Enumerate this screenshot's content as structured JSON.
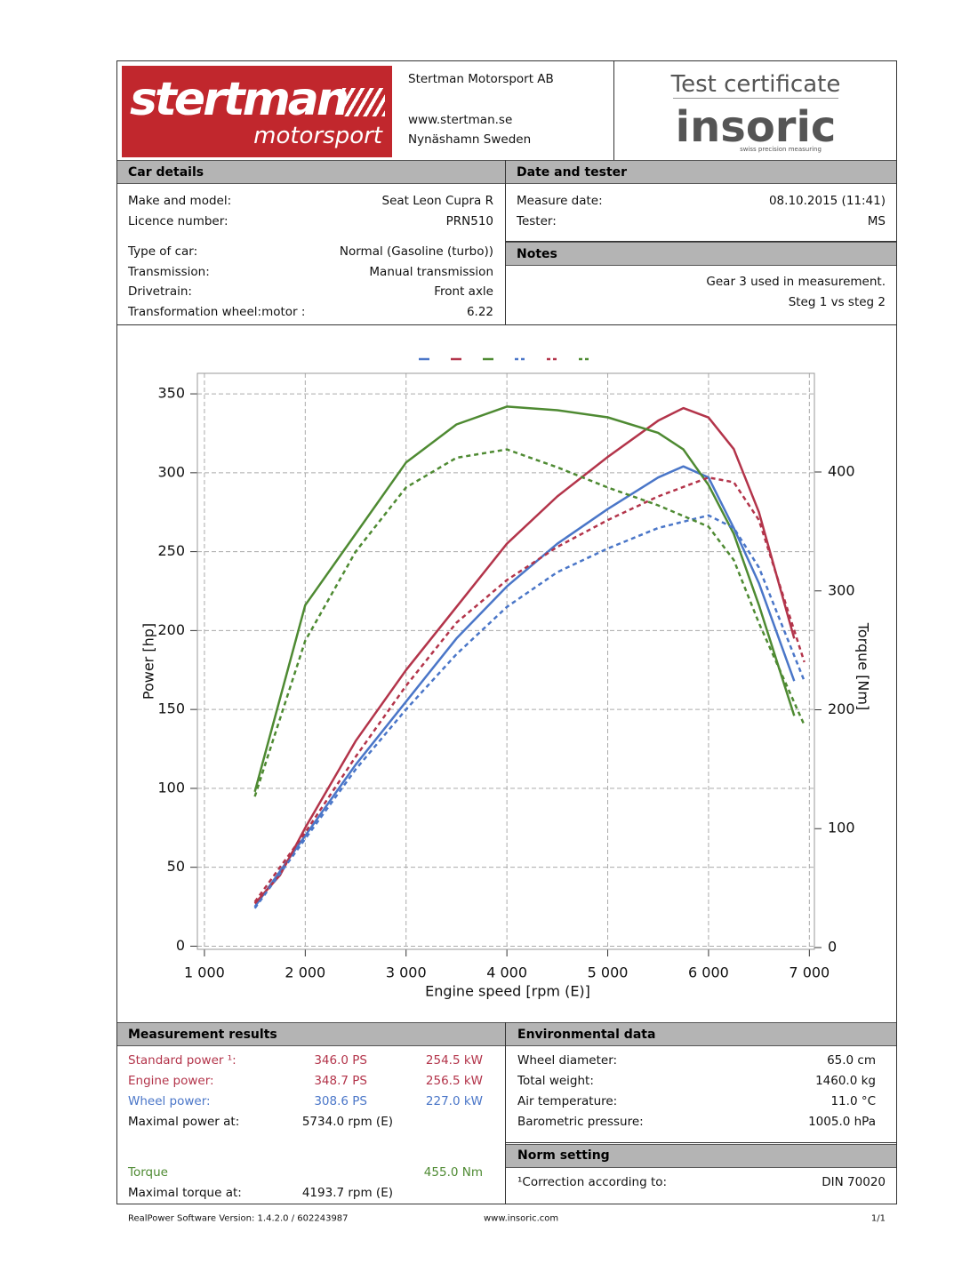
{
  "header": {
    "logo_main": "stertman",
    "logo_sub": "motorsport",
    "company": "Stertman Motorsport AB",
    "website": "www.stertman.se",
    "location": "Nynäshamn Sweden",
    "certificate": "Test certificate",
    "brand": "insoric",
    "brand_tagline": "swiss precision measuring"
  },
  "car_details": {
    "title": "Car details",
    "rows": [
      {
        "label": "Make and model:",
        "value": "Seat Leon Cupra R"
      },
      {
        "label": "Licence number:",
        "value": "PRN510"
      },
      {
        "label": "Type of car:",
        "value": "Normal (Gasoline (turbo))"
      },
      {
        "label": "Transmission:",
        "value": "Manual transmission"
      },
      {
        "label": "Drivetrain:",
        "value": "Front axle"
      },
      {
        "label": "Transformation wheel:motor :",
        "value": "6.22"
      }
    ]
  },
  "date_tester": {
    "title": "Date and tester",
    "rows": [
      {
        "label": "Measure date:",
        "value": "08.10.2015 (11:41)"
      },
      {
        "label": "Tester:",
        "value": "MS"
      }
    ]
  },
  "notes": {
    "title": "Notes",
    "lines": [
      "Gear 3 used in measurement.",
      "Steg 1 vs steg 2"
    ]
  },
  "chart_data": {
    "type": "line",
    "x_label": "Engine speed [rpm (E)]",
    "y_label": "Power [hp]",
    "y2_label": "Torque [Nm]",
    "grid": true,
    "legend": "top",
    "xlim": [
      930,
      7050
    ],
    "xticks": [
      {
        "value": 1000,
        "label": "1 000"
      },
      {
        "value": 2000,
        "label": "2 000"
      },
      {
        "value": 3000,
        "label": "3 000"
      },
      {
        "value": 4000,
        "label": "4 000"
      },
      {
        "value": 5000,
        "label": "5 000"
      },
      {
        "value": 6000,
        "label": "6 000"
      },
      {
        "value": 7000,
        "label": "7 000"
      }
    ],
    "ylim": [
      -2,
      363
    ],
    "yticks": [
      0,
      50,
      100,
      150,
      200,
      250,
      300,
      350
    ],
    "y2lim": [
      -1.5,
      483
    ],
    "y2ticks": [
      0,
      100,
      200,
      300,
      400
    ],
    "series": [
      {
        "color": "#4a76c8",
        "dashed": false,
        "x": [
          1500,
          2000,
          2500,
          3000,
          3500,
          4000,
          4500,
          5000,
          5500,
          5750,
          6000,
          6250,
          6500,
          6850
        ],
        "values": [
          25,
          70,
          115,
          155,
          195,
          228,
          255,
          277,
          297,
          304,
          297,
          265,
          230,
          168
        ]
      },
      {
        "color": "#b3344a",
        "dashed": false,
        "x": [
          1500,
          1750,
          2000,
          2500,
          3000,
          3500,
          4000,
          4500,
          5000,
          5500,
          5750,
          6000,
          6250,
          6500,
          6850
        ],
        "values": [
          27,
          45,
          75,
          130,
          175,
          215,
          255,
          285,
          310,
          333,
          341,
          335,
          315,
          275,
          195
        ]
      },
      {
        "color": "#4e8a32",
        "dashed": false,
        "axis": "y2",
        "x": [
          1500,
          2000,
          2500,
          3000,
          3500,
          4000,
          4500,
          5000,
          5500,
          5750,
          6000,
          6250,
          6500,
          6850
        ],
        "values": [
          131,
          288,
          348,
          408,
          440,
          455,
          452,
          446,
          433,
          419,
          389,
          348,
          288,
          195
        ]
      },
      {
        "color": "#4a76c8",
        "dashed": true,
        "x": [
          1500,
          2000,
          2500,
          3000,
          3500,
          4000,
          4500,
          5000,
          5500,
          5750,
          6000,
          6250,
          6500,
          6950
        ],
        "values": [
          24,
          68,
          112,
          150,
          185,
          215,
          237,
          252,
          265,
          269,
          273,
          265,
          240,
          168
        ]
      },
      {
        "color": "#b3344a",
        "dashed": true,
        "x": [
          1500,
          2000,
          2500,
          3000,
          3500,
          4000,
          4500,
          5000,
          5500,
          5750,
          6000,
          6250,
          6500,
          6950
        ],
        "values": [
          28,
          72,
          120,
          165,
          205,
          232,
          253,
          270,
          285,
          291,
          297,
          294,
          270,
          180
        ]
      },
      {
        "color": "#4e8a32",
        "dashed": true,
        "axis": "y2",
        "x": [
          1500,
          2000,
          2500,
          3000,
          3500,
          4000,
          4500,
          5000,
          5500,
          5750,
          6000,
          6250,
          6500,
          6950
        ],
        "values": [
          127,
          258,
          333,
          387,
          412,
          419,
          404,
          387,
          372,
          363,
          354,
          326,
          273,
          187
        ]
      }
    ]
  },
  "measurement_results": {
    "title": "Measurement results",
    "rows": [
      {
        "label": "Standard power ¹:",
        "ps": "346.0 PS",
        "kw": "254.5 kW"
      },
      {
        "label": "Engine power:",
        "ps": "348.7 PS",
        "kw": "256.5 kW"
      },
      {
        "label": "Wheel power:",
        "ps": "308.6 PS",
        "kw": "227.0 kW"
      },
      {
        "label": "Maximal power at:",
        "rpm": "5734.0 rpm (E)"
      },
      {
        "label": "Torque",
        "nm": "455.0 Nm"
      },
      {
        "label": "Maximal torque at:",
        "rpm": "4193.7 rpm (E)"
      }
    ]
  },
  "environmental_data": {
    "title": "Environmental data",
    "rows": [
      {
        "label": "Wheel diameter:",
        "value": "65.0 cm"
      },
      {
        "label": "Total weight:",
        "value": "1460.0 kg"
      },
      {
        "label": "Air temperature:",
        "value": "11.0 °C"
      },
      {
        "label": "Barometric pressure:",
        "value": "1005.0 hPa"
      }
    ]
  },
  "norm_setting": {
    "title": "Norm setting",
    "label": "¹Correction according to:",
    "value": "DIN 70020"
  },
  "footer": {
    "software": "RealPower Software Version: 1.4.2.0 / 602243987",
    "website": "www.insoric.com",
    "page": "1/1"
  }
}
